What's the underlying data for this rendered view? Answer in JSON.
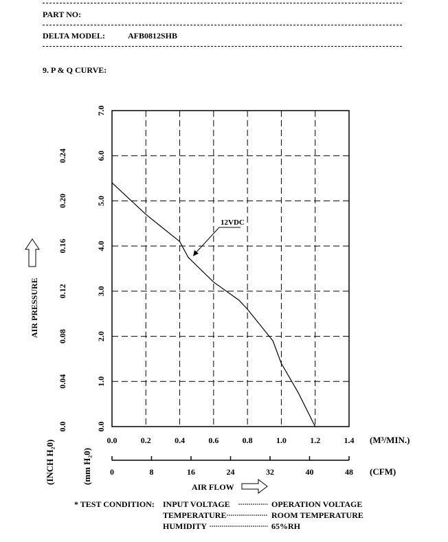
{
  "header": {
    "part_no_label": "PART NO:",
    "model_label": "DELTA MODEL:",
    "model_value": "AFB0812SHB",
    "section_title": "9. P & Q CURVE:"
  },
  "chart_data": {
    "type": "line",
    "series": [
      {
        "name": "12VDC",
        "points": [
          [
            0.0,
            5.4
          ],
          [
            0.1,
            5.05
          ],
          [
            0.2,
            4.7
          ],
          [
            0.3,
            4.4
          ],
          [
            0.4,
            4.1
          ],
          [
            0.45,
            3.75
          ],
          [
            0.6,
            3.2
          ],
          [
            0.75,
            2.8
          ],
          [
            0.8,
            2.6
          ],
          [
            0.95,
            1.9
          ],
          [
            1.0,
            1.4
          ],
          [
            1.1,
            0.75
          ],
          [
            1.2,
            0.0
          ]
        ]
      }
    ],
    "x_primary": {
      "unit": "(M³/MIN.)",
      "ticks": [
        "0.0",
        "0.2",
        "0.4",
        "0.6",
        "0.8",
        "1.0",
        "1.2",
        "1.4"
      ],
      "range": [
        0,
        1.4
      ]
    },
    "x_secondary": {
      "unit": "(CFM)",
      "ticks": [
        "0",
        "8",
        "16",
        "24",
        "32",
        "40",
        "48"
      ]
    },
    "y_primary": {
      "unit": "(mm H₂0)",
      "ticks": [
        "0.0",
        "1.0",
        "2.0",
        "3.0",
        "4.0",
        "5.0",
        "6.0",
        "7.0"
      ],
      "range": [
        0,
        7
      ]
    },
    "y_secondary": {
      "unit": "(INCH H₂0)",
      "ticks": [
        "0.0",
        "0.04",
        "0.08",
        "0.12",
        "0.16",
        "0.20",
        "0.24"
      ]
    },
    "xlabel": "AIR FLOW",
    "ylabel": "AIR PRESSURE",
    "grid": true,
    "series_label": "12VDC"
  },
  "test_condition": {
    "title": "* TEST CONDITION:",
    "rows": [
      {
        "label": "INPUT VOLTAGE",
        "value": "OPERATION VOLTAGE"
      },
      {
        "label": "TEMPERATURE",
        "value": "ROOM TEMPERATURE"
      },
      {
        "label": "HUMIDITY",
        "value": "65%RH"
      }
    ]
  }
}
